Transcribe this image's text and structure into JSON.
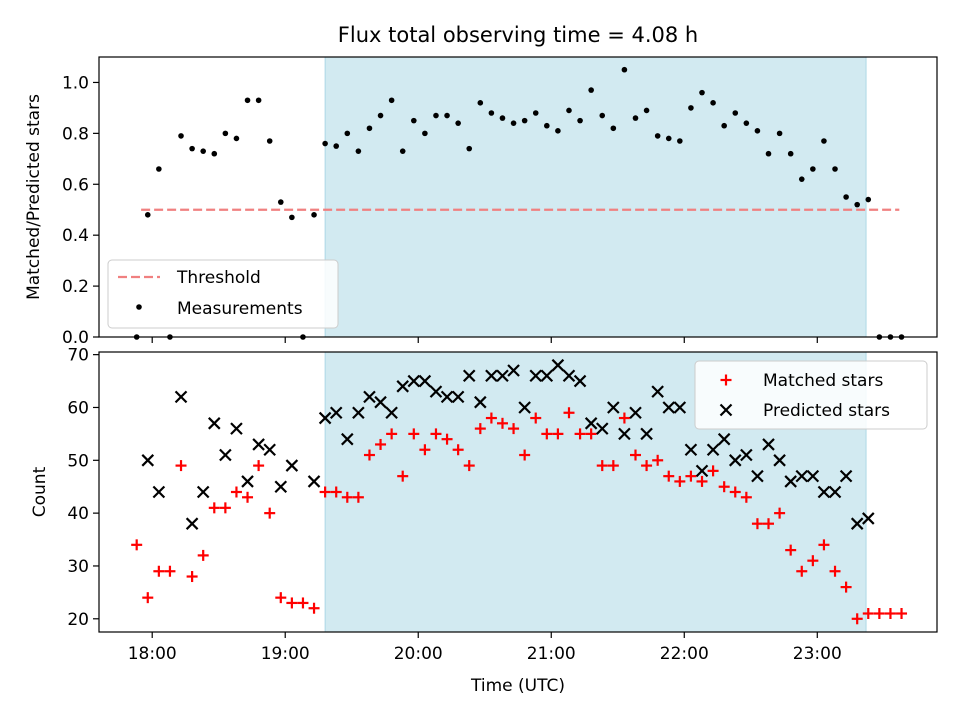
{
  "title": "Flux total observing time = 4.08 h",
  "colors": {
    "shade": "#add8e6",
    "threshold": "#f08080",
    "matched": "#ff0000",
    "predicted": "#000000",
    "measure": "#000000"
  },
  "chart_data": [
    {
      "type": "scatter",
      "ylabel": "Matched/Predicted stars",
      "ylim": [
        0,
        1.1
      ],
      "yticks": [
        "0.0",
        "0.2",
        "0.4",
        "0.6",
        "0.8",
        "1.0"
      ],
      "shaded_interval": [
        "19:18",
        "23:22"
      ],
      "threshold": {
        "value": 0.5,
        "x_range": [
          "17:55",
          "23:37"
        ]
      },
      "legend": {
        "position": "lower-left",
        "entries": [
          "Threshold",
          "Measurements"
        ]
      },
      "series": [
        {
          "name": "Measurements",
          "points": [
            [
              "17:53",
              0.0
            ],
            [
              "17:58",
              0.48
            ],
            [
              "18:03",
              0.66
            ],
            [
              "18:08",
              0.0
            ],
            [
              "18:13",
              0.79
            ],
            [
              "18:18",
              0.74
            ],
            [
              "18:23",
              0.73
            ],
            [
              "18:28",
              0.72
            ],
            [
              "18:33",
              0.8
            ],
            [
              "18:38",
              0.78
            ],
            [
              "18:43",
              0.93
            ],
            [
              "18:48",
              0.93
            ],
            [
              "18:53",
              0.77
            ],
            [
              "18:58",
              0.53
            ],
            [
              "19:03",
              0.47
            ],
            [
              "19:08",
              0.0
            ],
            [
              "19:13",
              0.48
            ],
            [
              "19:18",
              0.76
            ],
            [
              "19:23",
              0.75
            ],
            [
              "19:28",
              0.8
            ],
            [
              "19:33",
              0.73
            ],
            [
              "19:38",
              0.82
            ],
            [
              "19:43",
              0.87
            ],
            [
              "19:48",
              0.93
            ],
            [
              "19:53",
              0.73
            ],
            [
              "19:58",
              0.85
            ],
            [
              "20:03",
              0.8
            ],
            [
              "20:08",
              0.87
            ],
            [
              "20:13",
              0.87
            ],
            [
              "20:18",
              0.84
            ],
            [
              "20:23",
              0.74
            ],
            [
              "20:28",
              0.92
            ],
            [
              "20:33",
              0.88
            ],
            [
              "20:38",
              0.86
            ],
            [
              "20:43",
              0.84
            ],
            [
              "20:48",
              0.85
            ],
            [
              "20:53",
              0.88
            ],
            [
              "20:58",
              0.83
            ],
            [
              "21:03",
              0.81
            ],
            [
              "21:08",
              0.89
            ],
            [
              "21:13",
              0.85
            ],
            [
              "21:18",
              0.97
            ],
            [
              "21:23",
              0.87
            ],
            [
              "21:28",
              0.82
            ],
            [
              "21:33",
              1.05
            ],
            [
              "21:38",
              0.86
            ],
            [
              "21:43",
              0.89
            ],
            [
              "21:48",
              0.79
            ],
            [
              "21:53",
              0.78
            ],
            [
              "21:58",
              0.77
            ],
            [
              "22:03",
              0.9
            ],
            [
              "22:08",
              0.96
            ],
            [
              "22:13",
              0.92
            ],
            [
              "22:18",
              0.83
            ],
            [
              "22:23",
              0.88
            ],
            [
              "22:28",
              0.84
            ],
            [
              "22:33",
              0.81
            ],
            [
              "22:38",
              0.72
            ],
            [
              "22:43",
              0.8
            ],
            [
              "22:48",
              0.72
            ],
            [
              "22:53",
              0.62
            ],
            [
              "22:58",
              0.66
            ],
            [
              "23:03",
              0.77
            ],
            [
              "23:08",
              0.66
            ],
            [
              "23:13",
              0.55
            ],
            [
              "23:18",
              0.52
            ],
            [
              "23:23",
              0.54
            ],
            [
              "23:28",
              0.0
            ],
            [
              "23:33",
              0.0
            ],
            [
              "23:38",
              0.0
            ]
          ]
        }
      ]
    },
    {
      "type": "scatter",
      "xlabel": "Time (UTC)",
      "ylabel": "Count",
      "ylim": [
        17.5,
        70.5
      ],
      "yticks": [
        "20",
        "30",
        "40",
        "50",
        "60",
        "70"
      ],
      "xticks": [
        "18:00",
        "19:00",
        "20:00",
        "21:00",
        "22:00",
        "23:00"
      ],
      "shaded_interval": [
        "19:18",
        "23:22"
      ],
      "legend": {
        "position": "upper-right",
        "entries": [
          "Matched stars",
          "Predicted stars"
        ]
      },
      "series": [
        {
          "name": "Matched stars",
          "marker": "plus",
          "points": [
            [
              "17:53",
              34
            ],
            [
              "17:58",
              24
            ],
            [
              "18:03",
              29
            ],
            [
              "18:08",
              29
            ],
            [
              "18:13",
              49
            ],
            [
              "18:18",
              28
            ],
            [
              "18:23",
              32
            ],
            [
              "18:28",
              41
            ],
            [
              "18:33",
              41
            ],
            [
              "18:38",
              44
            ],
            [
              "18:43",
              43
            ],
            [
              "18:48",
              49
            ],
            [
              "18:53",
              40
            ],
            [
              "18:58",
              24
            ],
            [
              "19:03",
              23
            ],
            [
              "19:08",
              23
            ],
            [
              "19:13",
              22
            ],
            [
              "19:18",
              44
            ],
            [
              "19:23",
              44
            ],
            [
              "19:28",
              43
            ],
            [
              "19:33",
              43
            ],
            [
              "19:38",
              51
            ],
            [
              "19:43",
              53
            ],
            [
              "19:48",
              55
            ],
            [
              "19:53",
              47
            ],
            [
              "19:58",
              55
            ],
            [
              "20:03",
              52
            ],
            [
              "20:08",
              55
            ],
            [
              "20:13",
              54
            ],
            [
              "20:18",
              52
            ],
            [
              "20:23",
              49
            ],
            [
              "20:28",
              56
            ],
            [
              "20:33",
              58
            ],
            [
              "20:38",
              57
            ],
            [
              "20:43",
              56
            ],
            [
              "20:48",
              51
            ],
            [
              "20:53",
              58
            ],
            [
              "20:58",
              55
            ],
            [
              "21:03",
              55
            ],
            [
              "21:08",
              59
            ],
            [
              "21:13",
              55
            ],
            [
              "21:18",
              55
            ],
            [
              "21:23",
              49
            ],
            [
              "21:28",
              49
            ],
            [
              "21:33",
              58
            ],
            [
              "21:38",
              51
            ],
            [
              "21:43",
              49
            ],
            [
              "21:48",
              50
            ],
            [
              "21:53",
              47
            ],
            [
              "21:58",
              46
            ],
            [
              "22:03",
              47
            ],
            [
              "22:08",
              46
            ],
            [
              "22:13",
              48
            ],
            [
              "22:18",
              45
            ],
            [
              "22:23",
              44
            ],
            [
              "22:28",
              43
            ],
            [
              "22:33",
              38
            ],
            [
              "22:38",
              38
            ],
            [
              "22:43",
              40
            ],
            [
              "22:48",
              33
            ],
            [
              "22:53",
              29
            ],
            [
              "22:58",
              31
            ],
            [
              "23:03",
              34
            ],
            [
              "23:08",
              29
            ],
            [
              "23:13",
              26
            ],
            [
              "23:18",
              20
            ],
            [
              "23:23",
              21
            ],
            [
              "23:28",
              21
            ],
            [
              "23:33",
              21
            ],
            [
              "23:38",
              21
            ]
          ]
        },
        {
          "name": "Predicted stars",
          "marker": "x",
          "points": [
            [
              "17:58",
              50
            ],
            [
              "18:03",
              44
            ],
            [
              "18:13",
              62
            ],
            [
              "18:18",
              38
            ],
            [
              "18:23",
              44
            ],
            [
              "18:28",
              57
            ],
            [
              "18:33",
              51
            ],
            [
              "18:38",
              56
            ],
            [
              "18:43",
              46
            ],
            [
              "18:48",
              53
            ],
            [
              "18:53",
              52
            ],
            [
              "18:58",
              45
            ],
            [
              "19:03",
              49
            ],
            [
              "19:13",
              46
            ],
            [
              "19:18",
              58
            ],
            [
              "19:23",
              59
            ],
            [
              "19:28",
              54
            ],
            [
              "19:33",
              59
            ],
            [
              "19:38",
              62
            ],
            [
              "19:43",
              61
            ],
            [
              "19:48",
              59
            ],
            [
              "19:53",
              64
            ],
            [
              "19:58",
              65
            ],
            [
              "20:03",
              65
            ],
            [
              "20:08",
              63
            ],
            [
              "20:13",
              62
            ],
            [
              "20:18",
              62
            ],
            [
              "20:23",
              66
            ],
            [
              "20:28",
              61
            ],
            [
              "20:33",
              66
            ],
            [
              "20:38",
              66
            ],
            [
              "20:43",
              67
            ],
            [
              "20:48",
              60
            ],
            [
              "20:53",
              66
            ],
            [
              "20:58",
              66
            ],
            [
              "21:03",
              68
            ],
            [
              "21:08",
              66
            ],
            [
              "21:13",
              65
            ],
            [
              "21:18",
              57
            ],
            [
              "21:23",
              56
            ],
            [
              "21:28",
              60
            ],
            [
              "21:33",
              55
            ],
            [
              "21:38",
              59
            ],
            [
              "21:43",
              55
            ],
            [
              "21:48",
              63
            ],
            [
              "21:53",
              60
            ],
            [
              "21:58",
              60
            ],
            [
              "22:03",
              52
            ],
            [
              "22:08",
              48
            ],
            [
              "22:13",
              52
            ],
            [
              "22:18",
              54
            ],
            [
              "22:23",
              50
            ],
            [
              "22:28",
              51
            ],
            [
              "22:33",
              47
            ],
            [
              "22:38",
              53
            ],
            [
              "22:43",
              50
            ],
            [
              "22:48",
              46
            ],
            [
              "22:53",
              47
            ],
            [
              "22:58",
              47
            ],
            [
              "23:03",
              44
            ],
            [
              "23:08",
              44
            ],
            [
              "23:13",
              47
            ],
            [
              "23:18",
              38
            ],
            [
              "23:23",
              39
            ]
          ]
        }
      ]
    }
  ]
}
